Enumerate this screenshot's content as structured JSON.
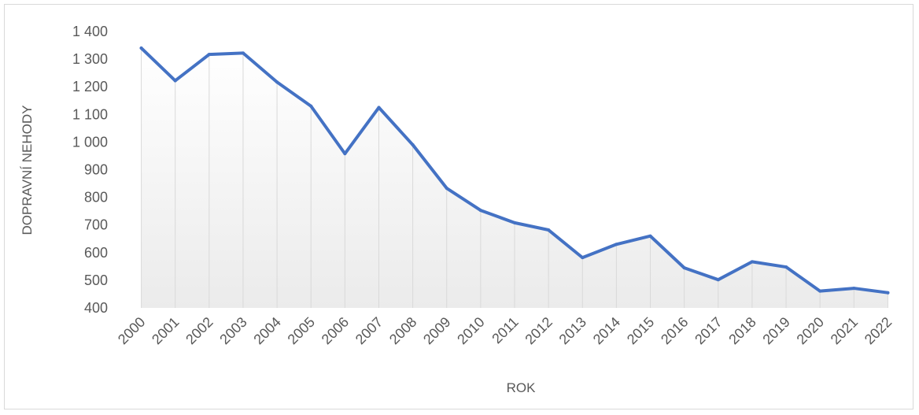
{
  "chart_data": {
    "type": "area",
    "title": "",
    "xlabel": "ROK",
    "ylabel": "DOPRAVNÍ NEHODY",
    "ylim": [
      400,
      1400
    ],
    "ytick_labels": [
      "400",
      "500",
      "600",
      "700",
      "800",
      "900",
      "1 000",
      "1 100",
      "1 200",
      "1 300",
      "1 400"
    ],
    "categories": [
      "2000",
      "2001",
      "2002",
      "2003",
      "2004",
      "2005",
      "2006",
      "2007",
      "2008",
      "2009",
      "2010",
      "2011",
      "2012",
      "2013",
      "2014",
      "2015",
      "2016",
      "2017",
      "2018",
      "2019",
      "2020",
      "2021",
      "2022"
    ],
    "series": [
      {
        "values": [
          1340,
          1222,
          1317,
          1322,
          1217,
          1130,
          958,
          1125,
          990,
          833,
          753,
          708,
          682,
          582,
          630,
          660,
          545,
          502,
          567,
          548,
          461,
          471,
          455
        ]
      }
    ],
    "grid": false,
    "drop_lines": true,
    "colors": {
      "line": "#4472c4",
      "drop_line": "#d9d9d9",
      "fill_top": "#ffffff",
      "fill_bottom": "#ebebeb",
      "text": "#595959"
    }
  }
}
